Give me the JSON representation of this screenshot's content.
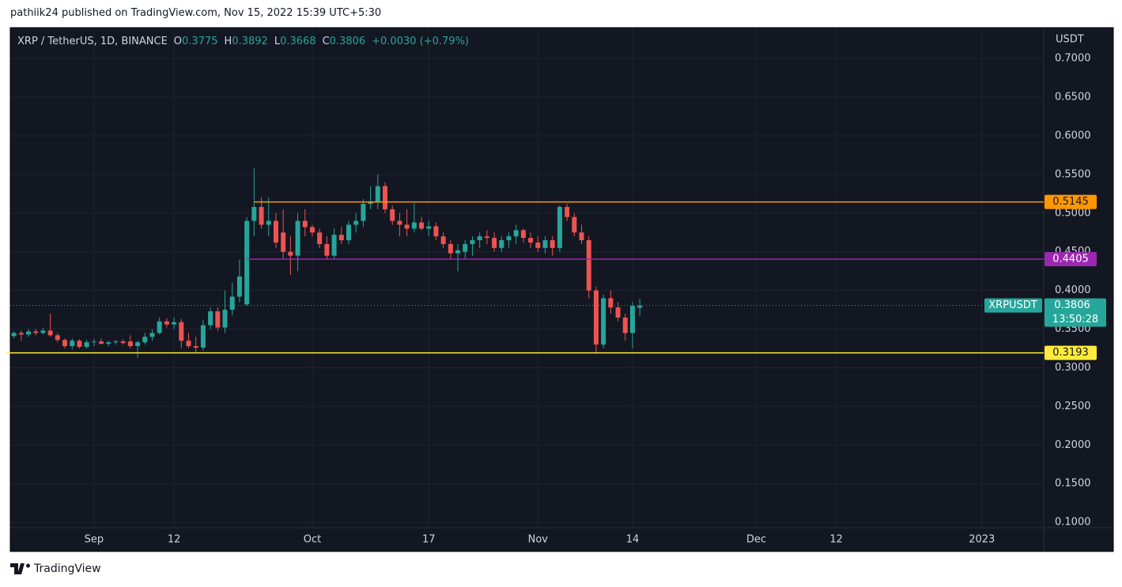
{
  "page_title": "pathiik24 published on TradingView.com, Nov 15, 2022 15:39 UTC+5:30",
  "brand": "TradingView",
  "header": {
    "symbol": "XRP / TetherUS, 1D, BINANCE",
    "open_label": "O",
    "open": "0.3775",
    "high_label": "H",
    "high": "0.3892",
    "low_label": "L",
    "low": "0.3668",
    "close_label": "C",
    "close": "0.3806",
    "change": "+0.0030 (+0.79%)"
  },
  "chart_data": {
    "type": "candlestick",
    "up_color": "#26a69a",
    "down_color": "#ef5350",
    "axis_unit": "USDT",
    "xlim": [
      "2022-08-20T12:00Z",
      "2023-01-09T12:00Z"
    ],
    "xticks": [
      {
        "value": "2022-09-01",
        "label": "Sep"
      },
      {
        "value": "2022-09-12",
        "label": "12"
      },
      {
        "value": "2022-10-01",
        "label": "Oct"
      },
      {
        "value": "2022-10-17",
        "label": "17"
      },
      {
        "value": "2022-11-01",
        "label": "Nov"
      },
      {
        "value": "2022-11-14",
        "label": "14"
      },
      {
        "value": "2022-12-01",
        "label": "Dec"
      },
      {
        "value": "2022-12-12",
        "label": "12"
      },
      {
        "value": "2023-01-01",
        "label": "2023"
      }
    ],
    "ylim": [
      0.093,
      0.74
    ],
    "yticks": [
      {
        "value": 0.1,
        "label": "0.1000"
      },
      {
        "value": 0.15,
        "label": "0.1500"
      },
      {
        "value": 0.2,
        "label": "0.2000"
      },
      {
        "value": 0.25,
        "label": "0.2500"
      },
      {
        "value": 0.3,
        "label": "0.3000"
      },
      {
        "value": 0.35,
        "label": "0.3500"
      },
      {
        "value": 0.4,
        "label": "0.4000"
      },
      {
        "value": 0.45,
        "label": "0.4500"
      },
      {
        "value": 0.5,
        "label": "0.5000"
      },
      {
        "value": 0.55,
        "label": "0.5500"
      },
      {
        "value": 0.6,
        "label": "0.6000"
      },
      {
        "value": 0.65,
        "label": "0.6500"
      },
      {
        "value": 0.7,
        "label": "0.7000"
      }
    ],
    "grid": true,
    "hlines": [
      {
        "value": 0.5145,
        "color": "#ff9800",
        "start": "2022-09-23"
      },
      {
        "value": 0.4405,
        "color": "#9c27b0",
        "start": "2022-09-22"
      },
      {
        "value": 0.3193,
        "color": "#ffeb3b",
        "start": "2022-08-20"
      }
    ],
    "last_price": {
      "name": "XRPUSDT",
      "value": 0.3806,
      "countdown": "13:50:28"
    },
    "candles": [
      {
        "date": "2022-08-21",
        "open": 0.341,
        "high": 0.347,
        "low": 0.338,
        "close": 0.345
      },
      {
        "date": "2022-08-22",
        "open": 0.345,
        "high": 0.348,
        "low": 0.335,
        "close": 0.343
      },
      {
        "date": "2022-08-23",
        "open": 0.343,
        "high": 0.35,
        "low": 0.34,
        "close": 0.347
      },
      {
        "date": "2022-08-24",
        "open": 0.347,
        "high": 0.35,
        "low": 0.342,
        "close": 0.345
      },
      {
        "date": "2022-08-25",
        "open": 0.345,
        "high": 0.352,
        "low": 0.343,
        "close": 0.348
      },
      {
        "date": "2022-08-26",
        "open": 0.348,
        "high": 0.37,
        "low": 0.34,
        "close": 0.342
      },
      {
        "date": "2022-08-27",
        "open": 0.342,
        "high": 0.345,
        "low": 0.333,
        "close": 0.336
      },
      {
        "date": "2022-08-28",
        "open": 0.336,
        "high": 0.338,
        "low": 0.325,
        "close": 0.328
      },
      {
        "date": "2022-08-29",
        "open": 0.328,
        "high": 0.338,
        "low": 0.324,
        "close": 0.335
      },
      {
        "date": "2022-08-30",
        "open": 0.335,
        "high": 0.337,
        "low": 0.325,
        "close": 0.327
      },
      {
        "date": "2022-08-31",
        "open": 0.327,
        "high": 0.336,
        "low": 0.325,
        "close": 0.333
      },
      {
        "date": "2022-09-01",
        "open": 0.333,
        "high": 0.337,
        "low": 0.328,
        "close": 0.334
      },
      {
        "date": "2022-09-02",
        "open": 0.334,
        "high": 0.338,
        "low": 0.33,
        "close": 0.331
      },
      {
        "date": "2022-09-03",
        "open": 0.331,
        "high": 0.335,
        "low": 0.328,
        "close": 0.333
      },
      {
        "date": "2022-09-04",
        "open": 0.333,
        "high": 0.336,
        "low": 0.33,
        "close": 0.334
      },
      {
        "date": "2022-09-05",
        "open": 0.334,
        "high": 0.337,
        "low": 0.33,
        "close": 0.332
      },
      {
        "date": "2022-09-06",
        "open": 0.334,
        "high": 0.342,
        "low": 0.325,
        "close": 0.328
      },
      {
        "date": "2022-09-07",
        "open": 0.328,
        "high": 0.335,
        "low": 0.313,
        "close": 0.333
      },
      {
        "date": "2022-09-08",
        "open": 0.333,
        "high": 0.345,
        "low": 0.33,
        "close": 0.34
      },
      {
        "date": "2022-09-09",
        "open": 0.34,
        "high": 0.35,
        "low": 0.335,
        "close": 0.345
      },
      {
        "date": "2022-09-10",
        "open": 0.345,
        "high": 0.365,
        "low": 0.343,
        "close": 0.36
      },
      {
        "date": "2022-09-11",
        "open": 0.36,
        "high": 0.364,
        "low": 0.352,
        "close": 0.356
      },
      {
        "date": "2022-09-12",
        "open": 0.356,
        "high": 0.365,
        "low": 0.35,
        "close": 0.359
      },
      {
        "date": "2022-09-13",
        "open": 0.359,
        "high": 0.363,
        "low": 0.325,
        "close": 0.335
      },
      {
        "date": "2022-09-14",
        "open": 0.335,
        "high": 0.345,
        "low": 0.325,
        "close": 0.328
      },
      {
        "date": "2022-09-15",
        "open": 0.328,
        "high": 0.34,
        "low": 0.32,
        "close": 0.326
      },
      {
        "date": "2022-09-16",
        "open": 0.326,
        "high": 0.362,
        "low": 0.322,
        "close": 0.355
      },
      {
        "date": "2022-09-17",
        "open": 0.355,
        "high": 0.378,
        "low": 0.35,
        "close": 0.373
      },
      {
        "date": "2022-09-18",
        "open": 0.373,
        "high": 0.378,
        "low": 0.348,
        "close": 0.352
      },
      {
        "date": "2022-09-19",
        "open": 0.352,
        "high": 0.4,
        "low": 0.345,
        "close": 0.375
      },
      {
        "date": "2022-09-20",
        "open": 0.375,
        "high": 0.41,
        "low": 0.368,
        "close": 0.392
      },
      {
        "date": "2022-09-21",
        "open": 0.392,
        "high": 0.44,
        "low": 0.385,
        "close": 0.418
      },
      {
        "date": "2022-09-22",
        "open": 0.382,
        "high": 0.495,
        "low": 0.38,
        "close": 0.49
      },
      {
        "date": "2022-09-23",
        "open": 0.49,
        "high": 0.558,
        "low": 0.47,
        "close": 0.508
      },
      {
        "date": "2022-09-24",
        "open": 0.508,
        "high": 0.52,
        "low": 0.48,
        "close": 0.485
      },
      {
        "date": "2022-09-25",
        "open": 0.485,
        "high": 0.52,
        "low": 0.47,
        "close": 0.49
      },
      {
        "date": "2022-09-26",
        "open": 0.49,
        "high": 0.5,
        "low": 0.455,
        "close": 0.462
      },
      {
        "date": "2022-09-27",
        "open": 0.475,
        "high": 0.505,
        "low": 0.44,
        "close": 0.45
      },
      {
        "date": "2022-09-28",
        "open": 0.45,
        "high": 0.47,
        "low": 0.42,
        "close": 0.445
      },
      {
        "date": "2022-09-29",
        "open": 0.445,
        "high": 0.5,
        "low": 0.425,
        "close": 0.49
      },
      {
        "date": "2022-09-30",
        "open": 0.49,
        "high": 0.505,
        "low": 0.47,
        "close": 0.482
      },
      {
        "date": "2022-10-01",
        "open": 0.482,
        "high": 0.485,
        "low": 0.47,
        "close": 0.475
      },
      {
        "date": "2022-10-02",
        "open": 0.475,
        "high": 0.48,
        "low": 0.455,
        "close": 0.46
      },
      {
        "date": "2022-10-03",
        "open": 0.46,
        "high": 0.47,
        "low": 0.44,
        "close": 0.445
      },
      {
        "date": "2022-10-04",
        "open": 0.445,
        "high": 0.48,
        "low": 0.44,
        "close": 0.472
      },
      {
        "date": "2022-10-05",
        "open": 0.472,
        "high": 0.482,
        "low": 0.46,
        "close": 0.465
      },
      {
        "date": "2022-10-06",
        "open": 0.465,
        "high": 0.49,
        "low": 0.46,
        "close": 0.485
      },
      {
        "date": "2022-10-07",
        "open": 0.485,
        "high": 0.5,
        "low": 0.475,
        "close": 0.49
      },
      {
        "date": "2022-10-08",
        "open": 0.49,
        "high": 0.518,
        "low": 0.482,
        "close": 0.512
      },
      {
        "date": "2022-10-09",
        "open": 0.512,
        "high": 0.535,
        "low": 0.505,
        "close": 0.515
      },
      {
        "date": "2022-10-10",
        "open": 0.515,
        "high": 0.55,
        "low": 0.505,
        "close": 0.535
      },
      {
        "date": "2022-10-11",
        "open": 0.535,
        "high": 0.54,
        "low": 0.5,
        "close": 0.505
      },
      {
        "date": "2022-10-12",
        "open": 0.505,
        "high": 0.51,
        "low": 0.485,
        "close": 0.49
      },
      {
        "date": "2022-10-13",
        "open": 0.49,
        "high": 0.5,
        "low": 0.47,
        "close": 0.485
      },
      {
        "date": "2022-10-14",
        "open": 0.485,
        "high": 0.505,
        "low": 0.47,
        "close": 0.48
      },
      {
        "date": "2022-10-15",
        "open": 0.48,
        "high": 0.513,
        "low": 0.475,
        "close": 0.488
      },
      {
        "date": "2022-10-16",
        "open": 0.488,
        "high": 0.495,
        "low": 0.478,
        "close": 0.48
      },
      {
        "date": "2022-10-17",
        "open": 0.48,
        "high": 0.49,
        "low": 0.47,
        "close": 0.483
      },
      {
        "date": "2022-10-18",
        "open": 0.483,
        "high": 0.488,
        "low": 0.465,
        "close": 0.47
      },
      {
        "date": "2022-10-19",
        "open": 0.47,
        "high": 0.475,
        "low": 0.455,
        "close": 0.46
      },
      {
        "date": "2022-10-20",
        "open": 0.46,
        "high": 0.465,
        "low": 0.44,
        "close": 0.448
      },
      {
        "date": "2022-10-21",
        "open": 0.448,
        "high": 0.46,
        "low": 0.425,
        "close": 0.452
      },
      {
        "date": "2022-10-22",
        "open": 0.45,
        "high": 0.465,
        "low": 0.44,
        "close": 0.46
      },
      {
        "date": "2022-10-23",
        "open": 0.46,
        "high": 0.47,
        "low": 0.445,
        "close": 0.465
      },
      {
        "date": "2022-10-24",
        "open": 0.465,
        "high": 0.475,
        "low": 0.455,
        "close": 0.47
      },
      {
        "date": "2022-10-25",
        "open": 0.47,
        "high": 0.478,
        "low": 0.46,
        "close": 0.468
      },
      {
        "date": "2022-10-26",
        "open": 0.468,
        "high": 0.475,
        "low": 0.45,
        "close": 0.455
      },
      {
        "date": "2022-10-27",
        "open": 0.455,
        "high": 0.47,
        "low": 0.45,
        "close": 0.465
      },
      {
        "date": "2022-10-28",
        "open": 0.465,
        "high": 0.475,
        "low": 0.455,
        "close": 0.47
      },
      {
        "date": "2022-10-29",
        "open": 0.47,
        "high": 0.485,
        "low": 0.46,
        "close": 0.478
      },
      {
        "date": "2022-10-30",
        "open": 0.478,
        "high": 0.48,
        "low": 0.462,
        "close": 0.468
      },
      {
        "date": "2022-10-31",
        "open": 0.468,
        "high": 0.475,
        "low": 0.455,
        "close": 0.462
      },
      {
        "date": "2022-11-01",
        "open": 0.462,
        "high": 0.47,
        "low": 0.45,
        "close": 0.455
      },
      {
        "date": "2022-11-02",
        "open": 0.455,
        "high": 0.47,
        "low": 0.448,
        "close": 0.465
      },
      {
        "date": "2022-11-03",
        "open": 0.465,
        "high": 0.47,
        "low": 0.445,
        "close": 0.455
      },
      {
        "date": "2022-11-04",
        "open": 0.455,
        "high": 0.51,
        "low": 0.45,
        "close": 0.508
      },
      {
        "date": "2022-11-05",
        "open": 0.508,
        "high": 0.512,
        "low": 0.49,
        "close": 0.495
      },
      {
        "date": "2022-11-06",
        "open": 0.495,
        "high": 0.5,
        "low": 0.47,
        "close": 0.475
      },
      {
        "date": "2022-11-07",
        "open": 0.475,
        "high": 0.485,
        "low": 0.46,
        "close": 0.465
      },
      {
        "date": "2022-11-08",
        "open": 0.465,
        "high": 0.47,
        "low": 0.39,
        "close": 0.4
      },
      {
        "date": "2022-11-09",
        "open": 0.4,
        "high": 0.405,
        "low": 0.318,
        "close": 0.33
      },
      {
        "date": "2022-11-10",
        "open": 0.33,
        "high": 0.395,
        "low": 0.325,
        "close": 0.39
      },
      {
        "date": "2022-11-11",
        "open": 0.39,
        "high": 0.4,
        "low": 0.37,
        "close": 0.378
      },
      {
        "date": "2022-11-12",
        "open": 0.378,
        "high": 0.385,
        "low": 0.36,
        "close": 0.365
      },
      {
        "date": "2022-11-13",
        "open": 0.365,
        "high": 0.37,
        "low": 0.335,
        "close": 0.345
      },
      {
        "date": "2022-11-14",
        "open": 0.345,
        "high": 0.385,
        "low": 0.325,
        "close": 0.38
      },
      {
        "date": "2022-11-15",
        "open": 0.3775,
        "high": 0.3892,
        "low": 0.3668,
        "close": 0.3806
      }
    ]
  }
}
